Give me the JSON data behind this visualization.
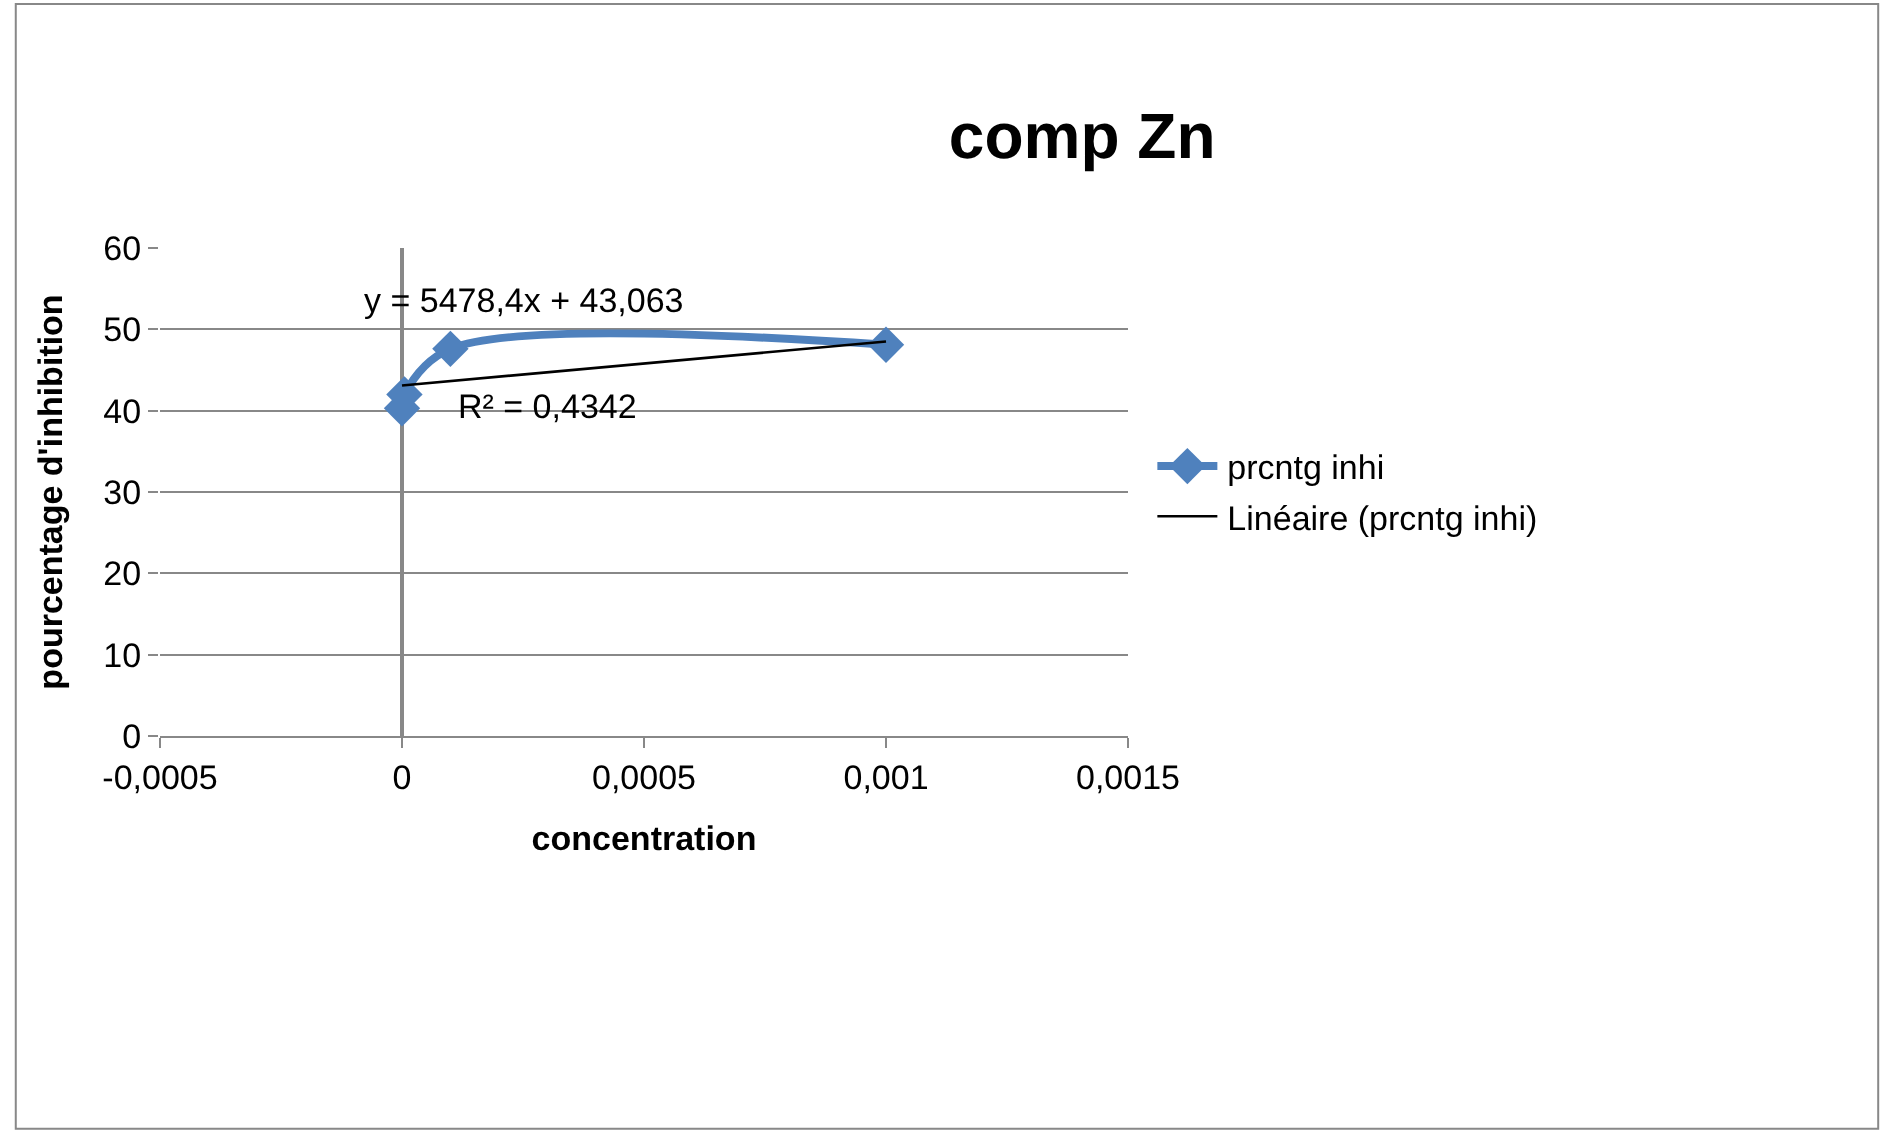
{
  "chart_data": {
    "type": "line",
    "title": "comp Zn",
    "xlabel": "concentration",
    "ylabel": "pourcentage d'inhibition",
    "xlim": [
      -0.0005,
      0.0015
    ],
    "xticks": [
      {
        "value": -0.0005,
        "label": "-0,0005"
      },
      0,
      {
        "value": 0.0005,
        "label": "0,0005"
      },
      {
        "value": 0.001,
        "label": "0,001"
      },
      {
        "value": 0.0015,
        "label": "0,0015"
      }
    ],
    "ylim": [
      0,
      60
    ],
    "yticks": [
      0,
      10,
      20,
      30,
      40,
      50,
      60
    ],
    "grid": "y",
    "legend": "right",
    "series": [
      {
        "name": "prcntg inhi",
        "color": "#4f81bd",
        "x": [
          0,
          5e-06,
          0.0001,
          0.001
        ],
        "values": [
          40.3,
          42,
          47.6,
          48.1
        ],
        "marker": "diamond",
        "line_style": "solid"
      },
      {
        "name": "Linéaire (prcntg inhi)",
        "type": "line",
        "color": "#000000",
        "x": [
          0,
          0.001
        ],
        "values": [
          43.1,
          48.5
        ],
        "marker": "none",
        "line_style": "solid"
      }
    ],
    "annotations": [
      "y = 5478,4x + 43,063",
      "R² = 0,4342"
    ]
  }
}
